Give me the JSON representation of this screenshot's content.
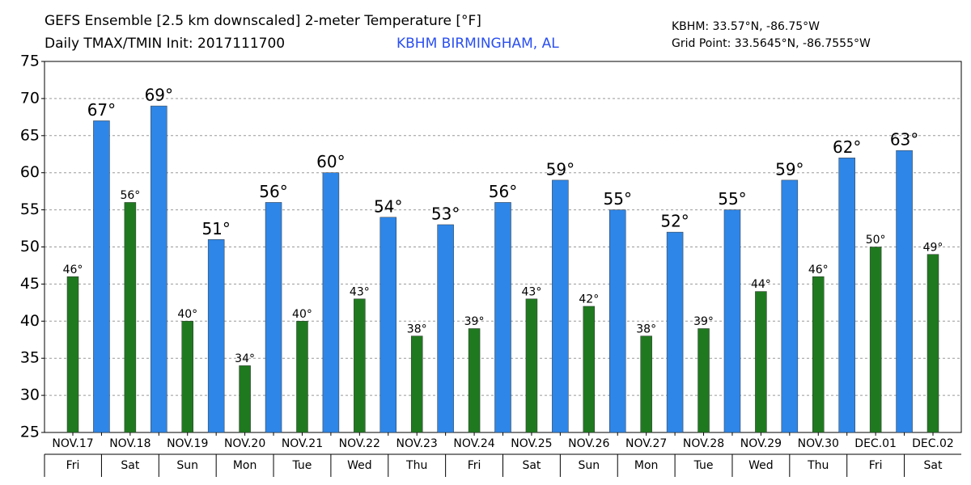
{
  "chart_data": {
    "type": "bar",
    "title": "GEFS Ensemble [2.5 km downscaled] 2-meter Temperature [°F]",
    "subtitle": "Daily TMAX/TMIN Init: 2017111700",
    "location": "KBHM BIRMINGHAM, AL",
    "station_coords": "KBHM: 33.57°N, -86.75°W",
    "grid_point": "Grid Point: 33.5645°N, -86.7555°W",
    "categories": [
      "NOV.17",
      null,
      "NOV.18",
      null,
      "NOV.19",
      null,
      "NOV.20",
      null,
      "NOV.21",
      null,
      "NOV.22",
      null,
      "NOV.23",
      null,
      "NOV.24",
      null,
      "NOV.25",
      null,
      "NOV.26",
      null,
      "NOV.27",
      null,
      "NOV.28",
      null,
      "NOV.29",
      null,
      "NOV.30",
      null,
      "DEC.01",
      null,
      "DEC.02"
    ],
    "weekdays": [
      "Fri",
      null,
      "Sat",
      null,
      "Sun",
      null,
      "Mon",
      null,
      "Tue",
      null,
      "Wed",
      null,
      "Thu",
      null,
      "Fri",
      null,
      "Sat",
      null,
      "Sun",
      null,
      "Mon",
      null,
      "Tue",
      null,
      "Wed",
      null,
      "Thu",
      null,
      "Fri",
      null,
      "Sat"
    ],
    "series": [
      {
        "color": "#1f7a1f",
        "values": [
          46,
          null,
          56,
          null,
          40,
          null,
          34,
          null,
          40,
          null,
          43,
          null,
          38,
          null,
          39,
          null,
          43,
          null,
          42,
          null,
          38,
          null,
          39,
          null,
          44,
          null,
          46,
          null,
          50,
          null,
          49
        ],
        "value_labels": [
          "46°",
          null,
          "56°",
          null,
          "40°",
          null,
          "34°",
          null,
          "40°",
          null,
          "43°",
          null,
          "38°",
          null,
          "39°",
          null,
          "43°",
          null,
          "42°",
          null,
          "38°",
          null,
          "39°",
          null,
          "44°",
          null,
          "46°",
          null,
          "50°",
          null,
          "49°"
        ]
      },
      {
        "color": "#2e86e8",
        "values": [
          null,
          67,
          null,
          69,
          null,
          51,
          null,
          56,
          null,
          60,
          null,
          54,
          null,
          53,
          null,
          56,
          null,
          59,
          null,
          55,
          null,
          52,
          null,
          55,
          null,
          59,
          null,
          62,
          null,
          63,
          null
        ],
        "value_labels": [
          null,
          "67°",
          null,
          "69°",
          null,
          "51°",
          null,
          "56°",
          null,
          "60°",
          null,
          "54°",
          null,
          "53°",
          null,
          "56°",
          null,
          "59°",
          null,
          "55°",
          null,
          "52°",
          null,
          "55°",
          null,
          "59°",
          null,
          "62°",
          null,
          "63°",
          null
        ]
      }
    ],
    "ylim": [
      25,
      75
    ],
    "yticks": [
      25,
      30,
      35,
      40,
      45,
      50,
      55,
      60,
      65,
      70,
      75
    ],
    "grid": true
  }
}
